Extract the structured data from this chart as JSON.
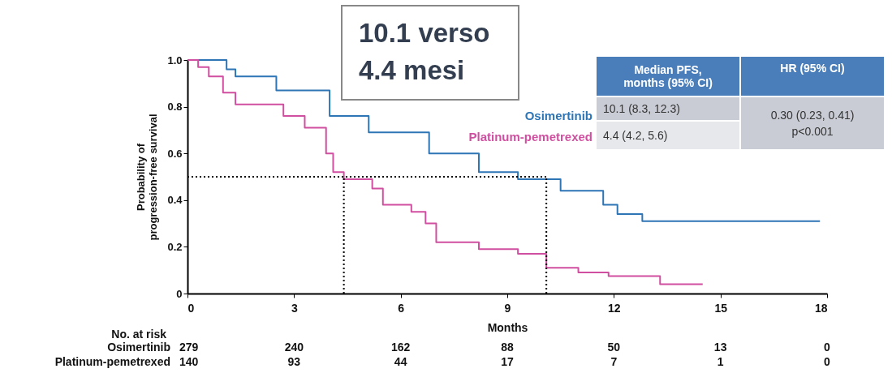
{
  "chart_data": {
    "type": "step",
    "xlabel": "Months",
    "ylabel": "Probability of\nprogression-free survival",
    "xlim": [
      0,
      18
    ],
    "xticks": [
      0,
      3,
      6,
      9,
      12,
      15,
      18
    ],
    "ylim": [
      0,
      1
    ],
    "yticks": [
      {
        "value": 0,
        "label": "0"
      },
      0.2,
      0.4,
      0.6,
      0.8,
      {
        "value": 1,
        "label": "1.0"
      }
    ],
    "grid": false,
    "line_style": "solid",
    "series": [
      {
        "name": "Osimertinib",
        "color": "#2e75b6",
        "x": [
          0,
          1.1,
          1.35,
          2.5,
          4.0,
          5.1,
          6.8,
          8.2,
          9.3,
          10.5,
          11.7,
          12.1,
          12.8,
          17.8
        ],
        "values": [
          1,
          0.96,
          0.93,
          0.87,
          0.76,
          0.69,
          0.6,
          0.52,
          0.49,
          0.44,
          0.38,
          0.34,
          0.31,
          0.31
        ]
      },
      {
        "name": "Platinum-pemetrexed",
        "color": "#d14fa0",
        "x": [
          0,
          0.3,
          0.6,
          1.0,
          1.35,
          2.7,
          3.3,
          3.9,
          4.1,
          4.4,
          5.2,
          5.5,
          6.3,
          6.7,
          7.0,
          8.2,
          9.3,
          10.1,
          11.0,
          11.85,
          13.3,
          14.5
        ],
        "values": [
          1,
          0.97,
          0.93,
          0.86,
          0.81,
          0.76,
          0.71,
          0.6,
          0.52,
          0.49,
          0.45,
          0.38,
          0.35,
          0.3,
          0.22,
          0.19,
          0.17,
          0.11,
          0.09,
          0.075,
          0.04,
          0.04
        ]
      }
    ],
    "ref_lines": [
      {
        "axis": "y",
        "value": 0.5,
        "line_style": "dotted",
        "color": "#000000"
      },
      {
        "axis": "x",
        "value": 4.4,
        "line_style": "dotted",
        "color": "#000000"
      },
      {
        "axis": "x",
        "value": 10.1,
        "line_style": "dotted",
        "color": "#000000"
      }
    ],
    "annotations": [
      "10.1 verso\n4.4 mesi",
      "Median PFS,\nmonths (95% CI)",
      "HR (95% CI)",
      "10.1 (8.3, 12.3)",
      "4.4 (4.2, 5.6)",
      "0.30 (0.23, 0.41)\np<0.001",
      "No. at risk",
      "Osimertinib",
      "279",
      "240",
      "162",
      "88",
      "50",
      "13",
      "0",
      "Platinum-pemetrexed",
      "140",
      "93",
      "44",
      "17",
      "7",
      "1",
      "0"
    ]
  }
}
